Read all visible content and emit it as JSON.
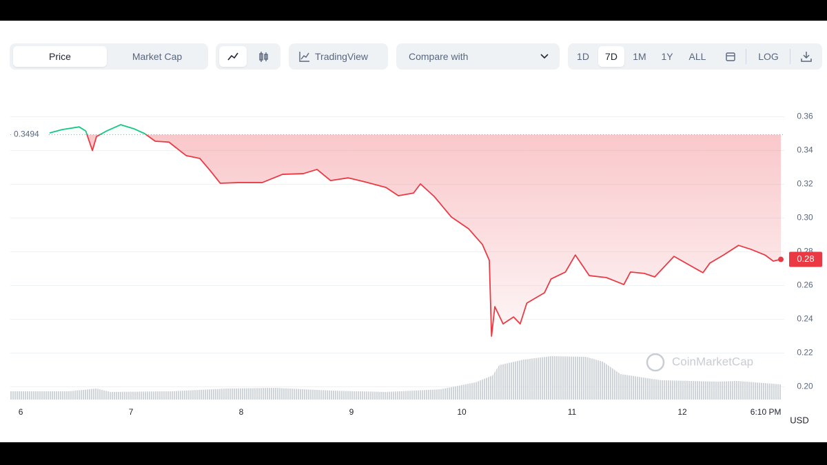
{
  "toolbar": {
    "tabs": [
      "Price",
      "Market Cap"
    ],
    "tradingview": "TradingView",
    "compare": "Compare with",
    "ranges": [
      "1D",
      "7D",
      "1M",
      "1Y",
      "ALL"
    ],
    "log": "LOG"
  },
  "chart_data": {
    "type": "line",
    "x": [
      6.2625,
      6.375,
      6.53,
      6.59,
      6.65,
      6.6875,
      6.78,
      6.906,
      7.031,
      7.125,
      7.22,
      7.344,
      7.5,
      7.625,
      7.72,
      7.81,
      7.97,
      8.19,
      8.375,
      8.5625,
      8.6875,
      8.81,
      8.97,
      9.125,
      9.3125,
      9.425,
      9.5625,
      9.625,
      9.75,
      9.906,
      10.0625,
      10.1875,
      10.25,
      10.27,
      10.3,
      10.375,
      10.47,
      10.53,
      10.59,
      10.75,
      10.81,
      10.94,
      11.03,
      11.156,
      11.3125,
      11.47,
      11.53,
      11.656,
      11.75,
      11.925,
      12.0625,
      12.1875,
      12.25,
      12.375,
      12.51,
      12.625,
      12.75,
      12.825,
      12.894
    ],
    "values": [
      0.3504,
      0.3524,
      0.354,
      0.3516,
      0.34,
      0.3483,
      0.3516,
      0.3553,
      0.3528,
      0.35,
      0.3455,
      0.345,
      0.337,
      0.3353,
      0.328,
      0.3206,
      0.321,
      0.321,
      0.3259,
      0.3263,
      0.3288,
      0.3222,
      0.3238,
      0.3214,
      0.3181,
      0.3132,
      0.3148,
      0.3202,
      0.3128,
      0.3006,
      0.2936,
      0.2843,
      0.2749,
      0.23,
      0.2475,
      0.2373,
      0.2414,
      0.2373,
      0.2496,
      0.2557,
      0.2639,
      0.268,
      0.2781,
      0.2659,
      0.2647,
      0.2606,
      0.268,
      0.2672,
      0.2651,
      0.2773,
      0.2722,
      0.2676,
      0.2733,
      0.2781,
      0.2838,
      0.2814,
      0.2781,
      0.2745,
      0.2755
    ],
    "color_above": "#16c784",
    "color_below": "#ea3943",
    "reference": 0.3494,
    "last_price_label": "0.28",
    "xlim": [
      5.906,
      12.925
    ],
    "xticks": [
      6,
      7,
      8,
      9,
      10,
      11,
      12,
      {
        "value": 12.757,
        "label": "6:10 PM"
      }
    ],
    "ylim": [
      0.19,
      0.37
    ],
    "yticks": [
      {
        "value": 0.2,
        "label": "0.20"
      },
      0.22,
      0.24,
      0.26,
      0.28,
      {
        "value": 0.3,
        "label": "0.30"
      },
      0.32,
      0.34,
      0.36
    ],
    "grid": true,
    "currency": "USD",
    "watermark": "CoinMarketCap",
    "volume": {
      "x": [
        5.906,
        6.4375,
        6.6875,
        6.8125,
        7.375,
        7.875,
        8.3125,
        8.8125,
        9.3125,
        9.8125,
        10.125,
        10.28,
        10.34,
        10.56,
        10.81,
        11.125,
        11.28,
        11.44,
        11.81,
        12.3125,
        12.5,
        12.894
      ],
      "values": [
        12,
        12,
        16,
        11,
        12,
        16,
        17,
        13,
        11,
        15,
        25,
        35,
        50,
        58,
        63,
        62,
        55,
        37,
        28,
        26,
        27,
        22
      ]
    },
    "volume_lim": [
      0,
      70
    ]
  }
}
